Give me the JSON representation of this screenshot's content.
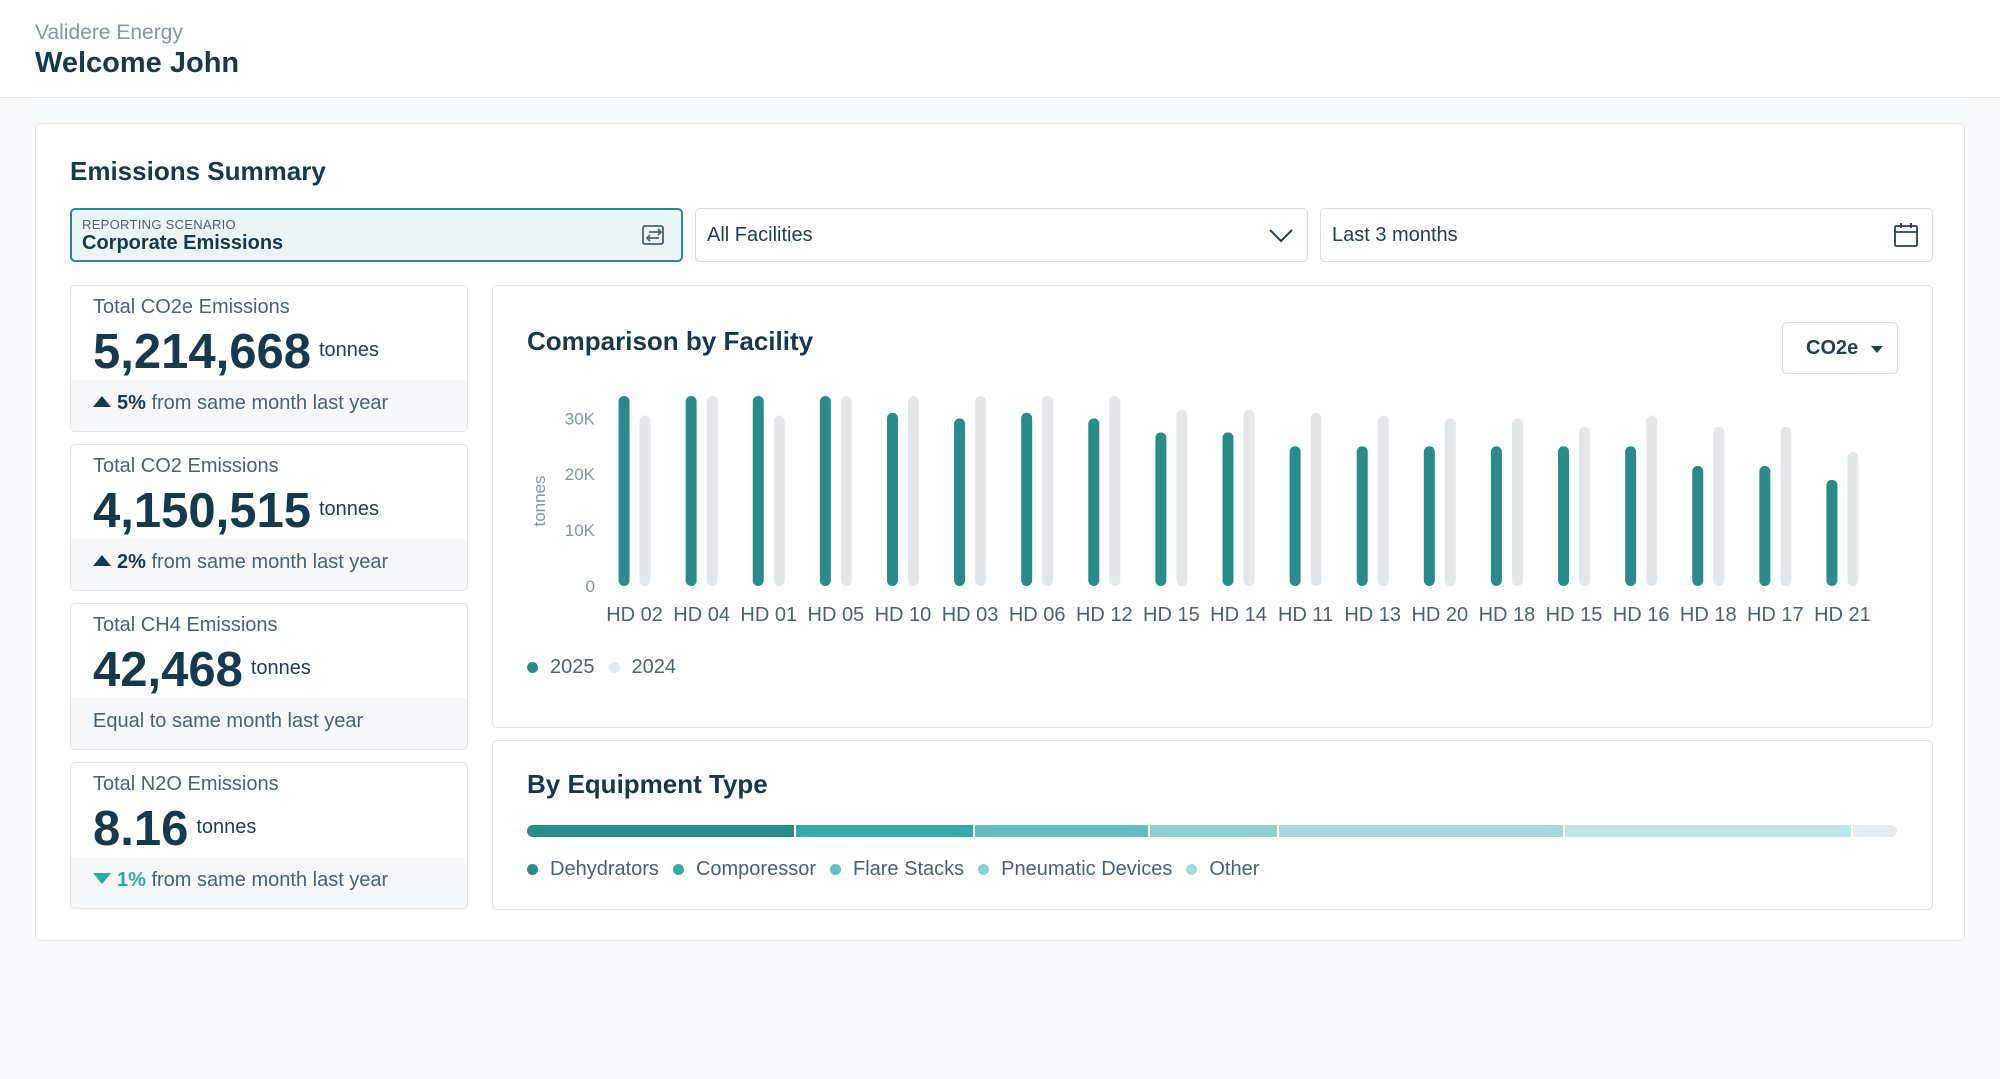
{
  "header": {
    "org": "Validere Energy",
    "welcome": "Welcome John"
  },
  "summary": {
    "title": "Emissions Summary",
    "scenario": {
      "label": "REPORTING SCENARIO",
      "value": "Corporate Emissions",
      "icon": "swap-icon"
    },
    "facilities": {
      "value": "All Facilities",
      "icon": "chevron-down-icon"
    },
    "date_range": {
      "value": "Last 3 months",
      "icon": "calendar-icon"
    }
  },
  "stats": [
    {
      "title": "Total CO2e Emissions",
      "value": "5,214,668",
      "unit": "tonnes",
      "change": "5%",
      "direction": "up",
      "suffix": "from same month last year"
    },
    {
      "title": "Total CO2 Emissions",
      "value": "4,150,515",
      "unit": "tonnes",
      "change": "2%",
      "direction": "up",
      "suffix": "from same month last year"
    },
    {
      "title": "Total CH4 Emissions",
      "value": "42,468",
      "unit": "tonnes",
      "change": "",
      "direction": "none",
      "suffix": "Equal to same month last year"
    },
    {
      "title": "Total N2O Emissions",
      "value": "8.16",
      "unit": "tonnes",
      "change": "1%",
      "direction": "down",
      "suffix": "from same month last year"
    }
  ],
  "comparison": {
    "title": "Comparison by Facility",
    "metric": "CO2e"
  },
  "chart_data": {
    "type": "bar",
    "title": "Comparison by Facility",
    "ylabel": "tonnes",
    "xlabel": "",
    "ylim": [
      0,
      34000
    ],
    "yticks": [
      0,
      10000,
      20000,
      30000
    ],
    "ytick_labels": [
      "0",
      "10K",
      "20K",
      "30K"
    ],
    "categories": [
      "HD 02",
      "HD 04",
      "HD 01",
      "HD 05",
      "HD 10",
      "HD 03",
      "HD 06",
      "HD 12",
      "HD 15",
      "HD 14",
      "HD 11",
      "HD 13",
      "HD 20",
      "HD 18",
      "HD 15",
      "HD 16",
      "HD 18",
      "HD 17",
      "HD 21"
    ],
    "series": [
      {
        "name": "2025",
        "color": "#2a8c89",
        "values": [
          34000,
          34000,
          34000,
          34000,
          31000,
          30000,
          31000,
          30000,
          27500,
          27500,
          25000,
          25000,
          25000,
          25000,
          25000,
          25000,
          21500,
          21500,
          19000
        ]
      },
      {
        "name": "2024",
        "color": "#e4e7e9",
        "values": [
          30500,
          34000,
          30500,
          34000,
          34000,
          34000,
          34000,
          34000,
          31500,
          31500,
          31000,
          30500,
          30000,
          30000,
          28500,
          30500,
          28500,
          28500,
          24000
        ]
      }
    ],
    "legend": [
      "2025",
      "2024"
    ]
  },
  "equipment": {
    "title": "By Equipment Type",
    "segments": [
      {
        "name": "Dehydrators",
        "share": 0.196,
        "color": "#2a8c89"
      },
      {
        "name": "Comporessor",
        "share": 0.131,
        "color": "#36aaa8"
      },
      {
        "name": "Flare Stacks",
        "share": 0.128,
        "color": "#63bfbd"
      },
      {
        "name": "Pneumatic Devices",
        "share": 0.094,
        "color": "#8dd0ce"
      },
      {
        "name": "Other",
        "share": 0.209,
        "color": "#a6dad9"
      },
      {
        "name": "",
        "share": 0.21,
        "color": "#c2e6e6"
      }
    ],
    "legend": [
      "Dehydrators",
      "Comporessor",
      "Flare Stacks",
      "Pneumatic Devices",
      "Other"
    ]
  }
}
